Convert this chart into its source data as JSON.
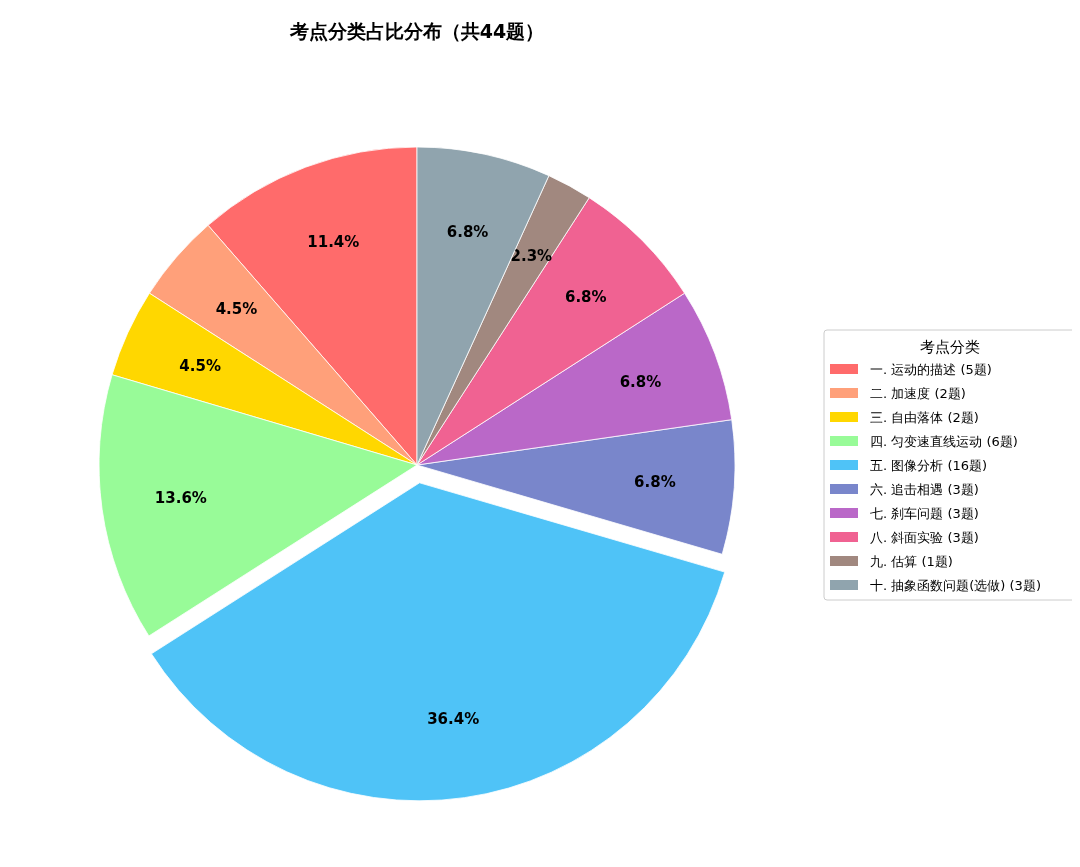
{
  "chart_data": {
    "type": "pie",
    "title": "考点分类占比分布（共44题）",
    "legend_title": "考点分类",
    "legend": "right",
    "categories": [
      "一. 运动的描述 (5题)",
      "二. 加速度 (2题)",
      "三. 自由落体 (2题)",
      "四. 匀变速直线运动 (6题)",
      "五. 图像分析 (16题)",
      "六. 追击相遇 (3题)",
      "七. 刹车问题 (3题)",
      "八. 斜面实验 (3题)",
      "九. 估算 (1题)",
      "十. 抽象函数问题(选做) (3题)"
    ],
    "values": [
      11.4,
      4.5,
      4.5,
      13.6,
      36.4,
      6.8,
      6.8,
      6.8,
      2.3,
      6.8
    ],
    "value_labels": [
      "11.4%",
      "4.5%",
      "4.5%",
      "13.6%",
      "36.4%",
      "6.8%",
      "6.8%",
      "6.8%",
      "2.3%",
      "6.8%"
    ],
    "colors": [
      "#ff6b6b",
      "#ffa07a",
      "#ffd700",
      "#98fb98",
      "#4fc3f7",
      "#7986cb",
      "#ba68c8",
      "#f06292",
      "#a1887f",
      "#90a4ae"
    ]
  }
}
